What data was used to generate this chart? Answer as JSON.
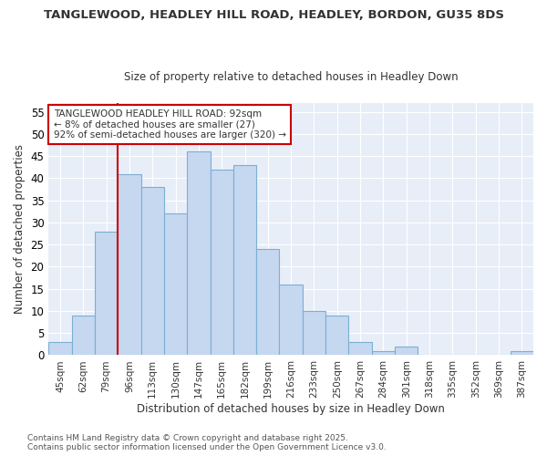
{
  "title_line1": "TANGLEWOOD, HEADLEY HILL ROAD, HEADLEY, BORDON, GU35 8DS",
  "title_line2": "Size of property relative to detached houses in Headley Down",
  "bar_labels": [
    "45sqm",
    "62sqm",
    "79sqm",
    "96sqm",
    "113sqm",
    "130sqm",
    "147sqm",
    "165sqm",
    "182sqm",
    "199sqm",
    "216sqm",
    "233sqm",
    "250sqm",
    "267sqm",
    "284sqm",
    "301sqm",
    "318sqm",
    "335sqm",
    "352sqm",
    "369sqm",
    "387sqm"
  ],
  "bar_values": [
    3,
    9,
    28,
    41,
    38,
    32,
    46,
    42,
    43,
    24,
    16,
    10,
    9,
    3,
    1,
    2,
    0,
    0,
    0,
    0,
    1
  ],
  "bar_color": "#c5d8f0",
  "bar_edgecolor": "#7bafd4",
  "ylim": [
    0,
    57
  ],
  "yticks": [
    0,
    5,
    10,
    15,
    20,
    25,
    30,
    35,
    40,
    45,
    50,
    55
  ],
  "ylabel": "Number of detached properties",
  "xlabel": "Distribution of detached houses by size in Headley Down",
  "vline_x": 3,
  "vline_color": "#cc0000",
  "annotation_title": "TANGLEWOOD HEADLEY HILL ROAD: 92sqm",
  "annotation_line2": "← 8% of detached houses are smaller (27)",
  "annotation_line3": "92% of semi-detached houses are larger (320) →",
  "annotation_box_edgecolor": "#cc0000",
  "footer_line1": "Contains HM Land Registry data © Crown copyright and database right 2025.",
  "footer_line2": "Contains public sector information licensed under the Open Government Licence v3.0.",
  "background_color": "#ffffff",
  "plot_bg_color": "#e8eef8",
  "grid_color": "#ffffff"
}
